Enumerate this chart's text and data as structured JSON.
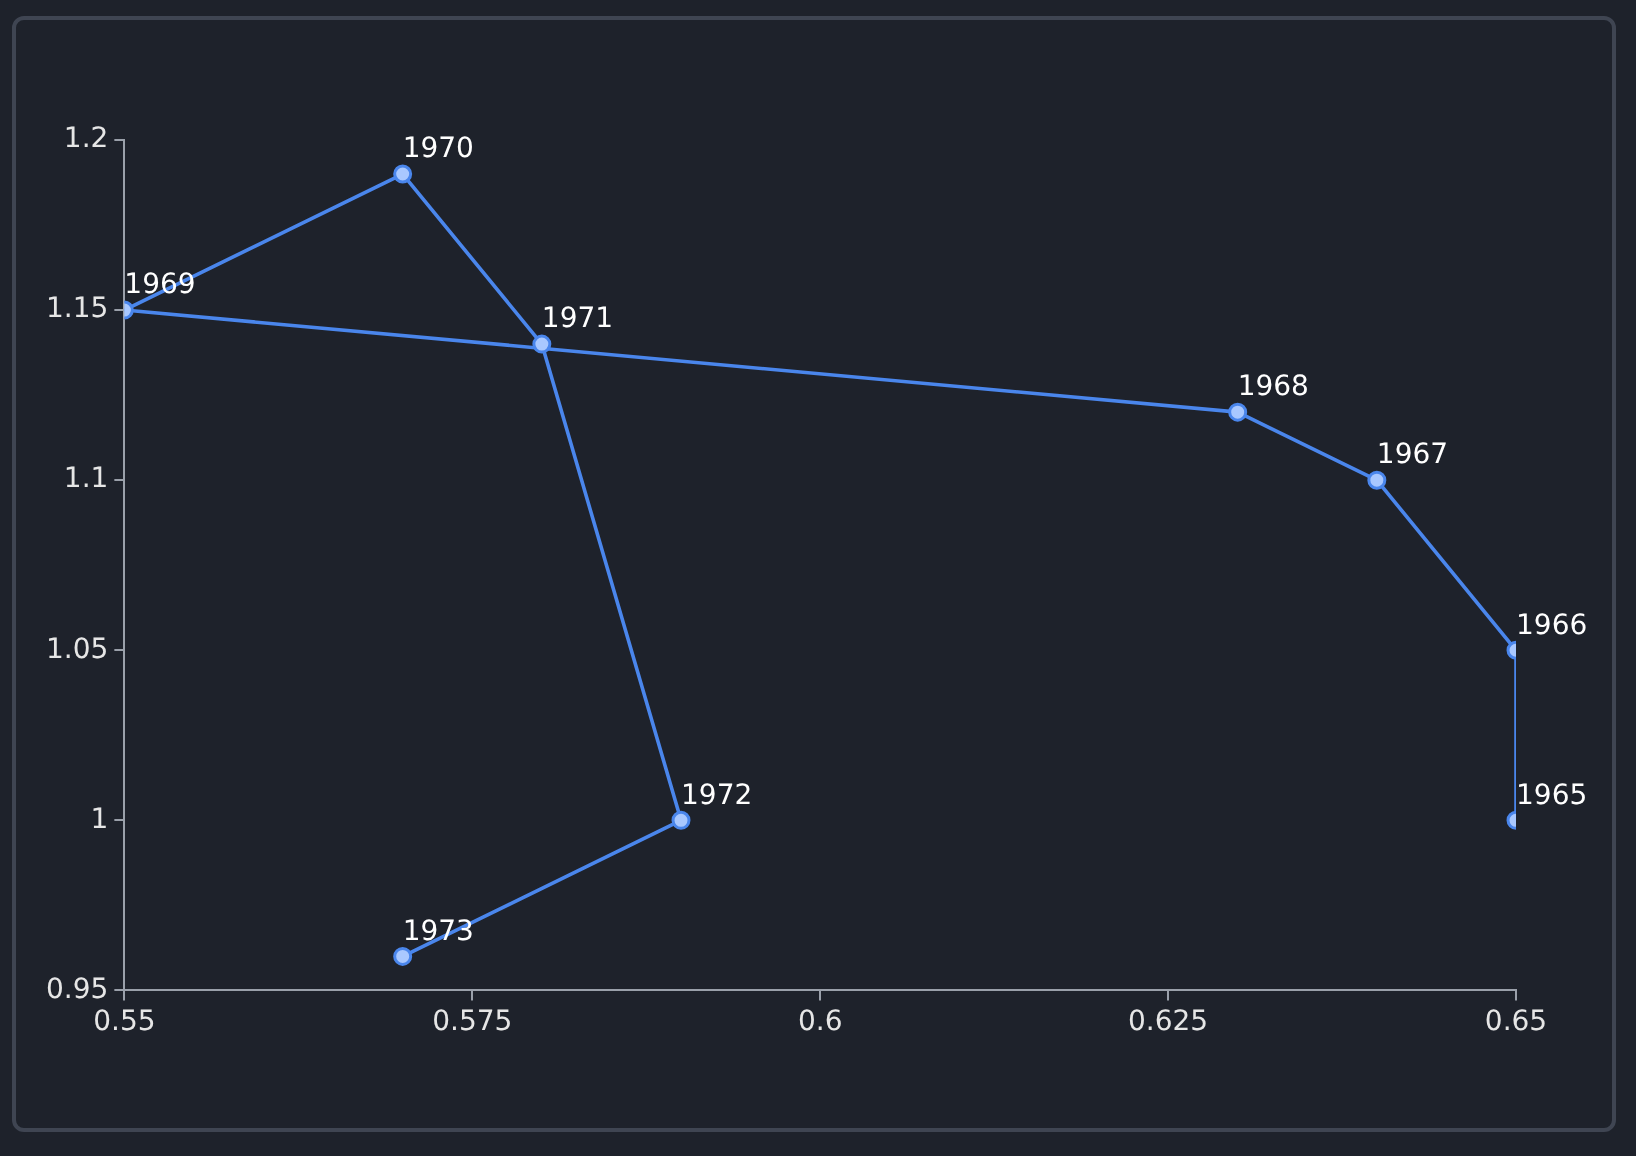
{
  "chart_data": {
    "type": "line",
    "marker": "circle",
    "grid": false,
    "legend": false,
    "x": [
      0.65,
      0.65,
      0.64,
      0.63,
      0.55,
      0.57,
      0.58,
      0.59,
      0.57
    ],
    "series": [
      {
        "color": "#4a86ec",
        "values": [
          1.0,
          1.05,
          1.1,
          1.12,
          1.15,
          1.19,
          1.14,
          1.0,
          0.96
        ]
      }
    ],
    "xlim": [
      0.55,
      0.65
    ],
    "xticks": [
      0.55,
      0.575,
      0.6,
      0.625,
      0.65
    ],
    "ylim": [
      0.95,
      1.2
    ],
    "yticks": [
      0.95,
      1,
      1.05,
      1.1,
      1.15,
      1.2
    ],
    "annotations": [
      {
        "text": "1965",
        "x": 0.65,
        "y": 1.0
      },
      {
        "text": "1966",
        "x": 0.65,
        "y": 1.05
      },
      {
        "text": "1967",
        "x": 0.64,
        "y": 1.1
      },
      {
        "text": "1968",
        "x": 0.63,
        "y": 1.12
      },
      {
        "text": "1969",
        "x": 0.55,
        "y": 1.15
      },
      {
        "text": "1970",
        "x": 0.57,
        "y": 1.19
      },
      {
        "text": "1971",
        "x": 0.58,
        "y": 1.14
      },
      {
        "text": "1972",
        "x": 0.59,
        "y": 1.0
      },
      {
        "text": "1973",
        "x": 0.57,
        "y": 0.96
      }
    ]
  }
}
